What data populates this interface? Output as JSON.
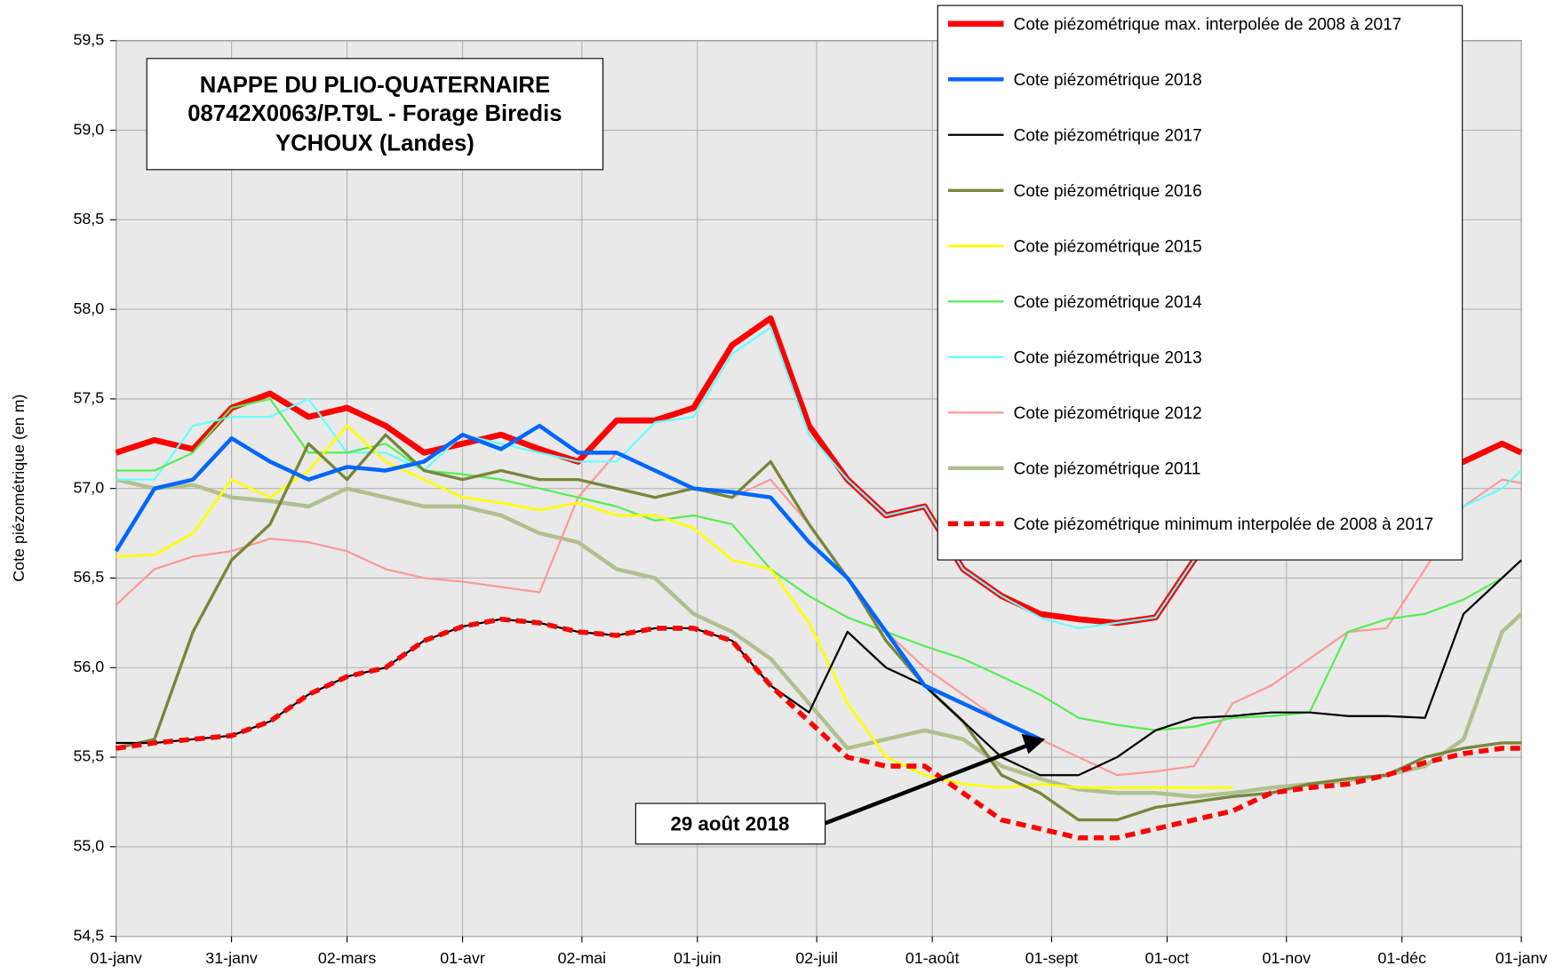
{
  "chart_data": {
    "type": "line",
    "title": [
      "NAPPE DU PLIO-QUATERNAIRE",
      "08742X0063/P.T9L - Forage Biredis",
      "YCHOUX (Landes)"
    ],
    "ylabel": "Cote piézométrique (en m)",
    "annotation": "29 août 2018",
    "grid": true,
    "legend": "upper right",
    "xlim": [
      0,
      365
    ],
    "xticks": [
      {
        "value": 0,
        "label": "01-janv"
      },
      {
        "value": 30,
        "label": "31-janv"
      },
      {
        "value": 60,
        "label": "02-mars"
      },
      {
        "value": 90,
        "label": "01-avr"
      },
      {
        "value": 121,
        "label": "02-mai"
      },
      {
        "value": 151,
        "label": "01-juin"
      },
      {
        "value": 182,
        "label": "02-juil"
      },
      {
        "value": 212,
        "label": "01-août"
      },
      {
        "value": 243,
        "label": "01-sept"
      },
      {
        "value": 273,
        "label": "01-oct"
      },
      {
        "value": 304,
        "label": "01-nov"
      },
      {
        "value": 334,
        "label": "01-déc"
      },
      {
        "value": 365,
        "label": "01-janv"
      }
    ],
    "ylim": [
      54.5,
      59.5
    ],
    "yticks": [
      {
        "value": 54.5,
        "label": "54,5"
      },
      {
        "value": 55,
        "label": "55,0"
      },
      {
        "value": 55.5,
        "label": "55,5"
      },
      {
        "value": 56,
        "label": "56,0"
      },
      {
        "value": 56.5,
        "label": "56,5"
      },
      {
        "value": 57,
        "label": "57,0"
      },
      {
        "value": 57.5,
        "label": "57,5"
      },
      {
        "value": 58,
        "label": "58,0"
      },
      {
        "value": 58.5,
        "label": "58,5"
      },
      {
        "value": 59,
        "label": "59,0"
      },
      {
        "value": 59.5,
        "label": "59,5"
      }
    ],
    "x": [
      0,
      10,
      20,
      30,
      40,
      50,
      60,
      70,
      80,
      90,
      100,
      110,
      120,
      130,
      140,
      150,
      160,
      170,
      180,
      190,
      200,
      210,
      220,
      230,
      240,
      250,
      260,
      270,
      280,
      290,
      300,
      310,
      320,
      330,
      340,
      350,
      360,
      365
    ],
    "series": [
      {
        "name": "Cote piézométrique max. interpolée de 2008 à 2017",
        "color": "#ff0000",
        "values": [
          57.2,
          57.27,
          57.22,
          57.45,
          57.53,
          57.4,
          57.45,
          57.35,
          57.2,
          57.25,
          57.3,
          57.22,
          57.15,
          57.38,
          57.38,
          57.45,
          57.8,
          57.95,
          57.35,
          57.05,
          56.85,
          56.9,
          56.55,
          56.4,
          56.3,
          56.27,
          56.25,
          56.28,
          56.6,
          56.85,
          57.0,
          57.05,
          57.05,
          57.05,
          57.1,
          57.15,
          57.25,
          57.2
        ]
      },
      {
        "name": "Cote piézométrique 2018",
        "color": "#0066ff",
        "values": [
          56.65,
          57.0,
          57.05,
          57.28,
          57.15,
          57.05,
          57.12,
          57.1,
          57.15,
          57.3,
          57.22,
          57.35,
          57.2,
          57.2,
          57.1,
          57.0,
          56.98,
          56.95,
          56.7,
          56.5,
          56.2,
          55.9,
          55.8,
          55.7,
          55.6,
          null,
          null,
          null,
          null,
          null,
          null,
          null,
          null,
          null,
          null,
          null,
          null,
          null
        ]
      },
      {
        "name": "Cote piézométrique 2017",
        "color": "#000000",
        "values": [
          55.58,
          55.58,
          55.6,
          55.62,
          55.7,
          55.85,
          55.95,
          56.0,
          56.15,
          56.23,
          56.27,
          56.25,
          56.2,
          56.18,
          56.22,
          56.22,
          56.15,
          55.9,
          55.75,
          56.2,
          56.0,
          55.9,
          55.7,
          55.5,
          55.4,
          55.4,
          55.5,
          55.65,
          55.72,
          55.73,
          55.75,
          55.75,
          55.73,
          55.73,
          55.72,
          56.3,
          56.5,
          56.6
        ]
      },
      {
        "name": "Cote piézométrique 2016",
        "color": "#77873a",
        "values": [
          55.55,
          55.6,
          56.2,
          56.6,
          56.8,
          57.25,
          57.05,
          57.3,
          57.1,
          57.05,
          57.1,
          57.05,
          57.05,
          57.0,
          56.95,
          57.0,
          56.95,
          57.15,
          56.8,
          56.5,
          56.15,
          55.9,
          55.7,
          55.4,
          55.3,
          55.15,
          55.15,
          55.22,
          55.25,
          55.28,
          55.3,
          55.35,
          55.38,
          55.4,
          55.5,
          55.55,
          55.58,
          55.58
        ]
      },
      {
        "name": "Cote piézométrique 2015",
        "color": "#ffff00",
        "values": [
          56.62,
          56.63,
          56.75,
          57.05,
          56.95,
          57.1,
          57.35,
          57.15,
          57.05,
          56.95,
          56.92,
          56.88,
          56.92,
          56.85,
          56.85,
          56.78,
          56.6,
          56.55,
          56.25,
          55.8,
          55.5,
          55.4,
          55.35,
          55.33,
          55.35,
          55.33,
          55.33,
          55.33,
          55.33,
          55.33,
          null,
          null,
          null,
          null,
          null,
          null,
          null,
          null
        ]
      },
      {
        "name": "Cote piézométrique 2014",
        "color": "#55ee55",
        "values": [
          57.1,
          57.1,
          57.2,
          57.45,
          57.5,
          57.2,
          57.2,
          57.25,
          57.1,
          57.08,
          57.05,
          57.0,
          56.95,
          56.9,
          56.82,
          56.85,
          56.8,
          56.55,
          56.4,
          56.28,
          56.2,
          56.12,
          56.05,
          55.95,
          55.85,
          55.72,
          55.68,
          55.65,
          55.67,
          55.72,
          55.73,
          55.75,
          56.2,
          56.27,
          56.3,
          56.38,
          56.5,
          56.6
        ]
      },
      {
        "name": "Cote piézométrique 2013",
        "color": "#66ffff",
        "values": [
          57.05,
          57.05,
          57.35,
          57.4,
          57.4,
          57.5,
          57.2,
          57.2,
          57.1,
          57.3,
          57.25,
          57.2,
          57.15,
          57.15,
          57.37,
          57.4,
          57.75,
          57.9,
          57.3,
          57.05,
          56.85,
          56.9,
          56.55,
          56.4,
          56.28,
          56.22,
          56.25,
          56.28,
          56.6,
          56.9,
          56.95,
          56.95,
          57.0,
          57.0,
          56.95,
          56.9,
          57.0,
          57.1
        ]
      },
      {
        "name": "Cote piézométrique 2012",
        "color": "#ff9999",
        "values": [
          56.35,
          56.55,
          56.62,
          56.65,
          56.72,
          56.7,
          56.65,
          56.55,
          56.5,
          56.48,
          56.45,
          56.42,
          56.95,
          57.2,
          57.1,
          57.0,
          56.95,
          57.05,
          56.8,
          56.5,
          56.2,
          56.0,
          55.85,
          55.7,
          55.6,
          55.5,
          55.4,
          55.42,
          55.45,
          55.8,
          55.9,
          56.05,
          56.2,
          56.22,
          56.55,
          56.9,
          57.05,
          57.03
        ]
      },
      {
        "name": "Cote piézométrique 2011",
        "color": "#b0c090",
        "values": [
          57.05,
          57.0,
          57.02,
          56.95,
          56.93,
          56.9,
          57.0,
          56.95,
          56.9,
          56.9,
          56.85,
          56.75,
          56.7,
          56.55,
          56.5,
          56.3,
          56.2,
          56.05,
          55.8,
          55.55,
          55.6,
          55.65,
          55.6,
          55.45,
          55.38,
          55.32,
          55.3,
          55.3,
          55.28,
          55.3,
          55.33,
          55.35,
          55.37,
          55.4,
          55.45,
          55.6,
          56.2,
          56.3
        ]
      },
      {
        "name": "Cote piézométrique minimum interpolée de 2008 à 2017",
        "color": "#ff0000",
        "dashed": true,
        "values": [
          55.55,
          55.58,
          55.6,
          55.62,
          55.7,
          55.85,
          55.95,
          56.0,
          56.15,
          56.23,
          56.27,
          56.25,
          56.2,
          56.18,
          56.22,
          56.22,
          56.15,
          55.9,
          55.7,
          55.5,
          55.45,
          55.45,
          55.3,
          55.15,
          55.1,
          55.05,
          55.05,
          55.1,
          55.15,
          55.2,
          55.3,
          55.33,
          55.35,
          55.4,
          55.47,
          55.52,
          55.55,
          55.55
        ]
      }
    ]
  }
}
